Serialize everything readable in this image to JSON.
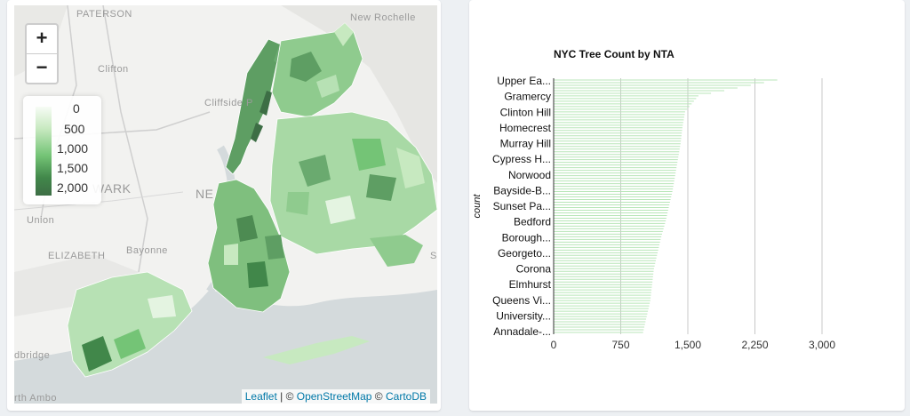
{
  "map": {
    "zoom_in_label": "+",
    "zoom_out_label": "−",
    "legend": {
      "labels": [
        "0",
        "500",
        "1,000",
        "1,500",
        "2,000"
      ],
      "colors": [
        "#f7fcf5",
        "#c7e9c0",
        "#74c476",
        "#41874a",
        "#3d6e45"
      ]
    },
    "attribution": {
      "leaflet": "Leaflet",
      "sep1": " | © ",
      "osm": "OpenStreetMap",
      "sep2": " © ",
      "carto": "CartoDB"
    },
    "place_labels": {
      "paterson": "PATERSON",
      "new_rochelle": "New Rochelle",
      "clifton": "Clifton",
      "cliffside": "Cliffside P",
      "newark": "WARK",
      "ne": "NE",
      "union": "Union",
      "elizabeth": "ELIZABETH",
      "bayonne": "Bayonne",
      "bridge": "dbridge",
      "amboy": "rth Ambo",
      "s_edge": "S"
    }
  },
  "chart_data": {
    "type": "bar",
    "title": "NYC Tree Count by NTA",
    "ylabel": "count",
    "xlim": [
      0,
      3000
    ],
    "x_ticks": [
      "0",
      "750",
      "1,500",
      "2,250",
      "3,000"
    ],
    "bar_color": "#b8e6b8",
    "categories": [
      "Upper Ea...",
      "Gramercy",
      "Clinton Hill",
      "Homecrest",
      "Murray Hill",
      "Cypress H...",
      "Norwood",
      "Bayside-B...",
      "Sunset Pa...",
      "Bedford",
      "Borough...",
      "Georgeto...",
      "Corona",
      "Elmhurst",
      "Queens Vi...",
      "University...",
      "Annadale-..."
    ],
    "values": [
      2500,
      1620,
      1470,
      1440,
      1420,
      1390,
      1360,
      1330,
      1290,
      1250,
      1200,
      1160,
      1120,
      1100,
      1080,
      1040,
      1000
    ]
  }
}
